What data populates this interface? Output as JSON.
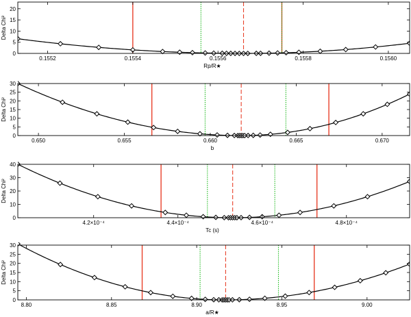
{
  "chart_data": [
    {
      "type": "line",
      "xlabel": "Rp/R★",
      "ylabel": "Delta Chi²",
      "xlim": [
        0.15513,
        0.15605
      ],
      "ylim": [
        0,
        23
      ],
      "xticks": [
        0.1552,
        0.1554,
        0.1556,
        0.1558,
        0.156
      ],
      "xtick_labels": [
        "0.1552",
        "0.1554",
        "0.1556",
        "0.1558",
        "0.1560"
      ],
      "yticks": [
        0,
        5,
        10,
        15,
        20
      ],
      "curve": {
        "center": 0.15566,
        "a_left": 23350000,
        "a_right": 29900000
      },
      "points_x": [
        0.15513,
        0.15523,
        0.15532,
        0.1554,
        0.15547,
        0.15551,
        0.15554,
        0.15557,
        0.15559,
        0.15561,
        0.15562,
        0.15563,
        0.15564,
        0.15565,
        0.15566,
        0.15567,
        0.15569,
        0.1557,
        0.15572,
        0.15574,
        0.15576,
        0.15579,
        0.15584,
        0.1559,
        0.15597,
        0.15605
      ],
      "vlines": [
        {
          "x": 0.1554,
          "color": "#e8402a",
          "style": "solid"
        },
        {
          "x": 0.15575,
          "color": "#e8402a",
          "style": "solid"
        },
        {
          "x": 0.15556,
          "color": "#22bb22",
          "style": "dotted"
        },
        {
          "x": 0.15575,
          "color": "#22bb22",
          "style": "dotted"
        },
        {
          "x": 0.15566,
          "color": "#e8402a",
          "style": "dashed"
        }
      ]
    },
    {
      "type": "line",
      "xlabel": "b",
      "ylabel": "Delta Chi²",
      "xlim": [
        0.6488,
        0.6716
      ],
      "ylim": [
        0,
        30
      ],
      "xticks": [
        0.65,
        0.655,
        0.66,
        0.665,
        0.67
      ],
      "xtick_labels": [
        "0.650",
        "0.655",
        "0.660",
        "0.665",
        "0.670"
      ],
      "yticks": [
        0,
        5,
        10,
        15,
        20,
        25,
        30
      ],
      "curve": {
        "center": 0.6618,
        "a_left": 177500,
        "a_right": 249000
      },
      "points_x": [
        0.6488,
        0.6514,
        0.6534,
        0.6552,
        0.6567,
        0.6581,
        0.6594,
        0.6604,
        0.661,
        0.6614,
        0.6616,
        0.6617,
        0.6618,
        0.6619,
        0.662,
        0.6622,
        0.6625,
        0.6629,
        0.6635,
        0.6645,
        0.6658,
        0.6673,
        0.6689,
        0.6703,
        0.6716
      ],
      "vlines": [
        {
          "x": 0.6566,
          "color": "#e8402a",
          "style": "solid"
        },
        {
          "x": 0.6669,
          "color": "#e8402a",
          "style": "solid"
        },
        {
          "x": 0.6597,
          "color": "#22bb22",
          "style": "dotted"
        },
        {
          "x": 0.6644,
          "color": "#22bb22",
          "style": "dotted"
        },
        {
          "x": 0.6618,
          "color": "#e8402a",
          "style": "dashed"
        }
      ]
    },
    {
      "type": "line",
      "xlabel": "Tc (s)",
      "ylabel": "Delta Chi²",
      "xlim": [
        4.02,
        4.95
      ],
      "ylim": [
        0,
        40
      ],
      "xticks": [
        4.2,
        4.4,
        4.6,
        4.8
      ],
      "xtick_labels": [
        "4.2×10⁻⁴",
        "4.4×10⁻⁴",
        "4.6×10⁻⁴",
        "4.8×10⁻⁴"
      ],
      "yticks": [
        0,
        10,
        20,
        30,
        40
      ],
      "curve": {
        "center": 4.53,
        "a_left": 154,
        "a_right": 154
      },
      "points_x": [
        4.02,
        4.12,
        4.21,
        4.29,
        4.37,
        4.42,
        4.46,
        4.49,
        4.51,
        4.52,
        4.525,
        4.53,
        4.535,
        4.54,
        4.55,
        4.57,
        4.6,
        4.64,
        4.69,
        4.77,
        4.85,
        4.95
      ],
      "vlines": [
        {
          "x": 4.36,
          "color": "#e8402a",
          "style": "solid"
        },
        {
          "x": 4.73,
          "color": "#e8402a",
          "style": "solid"
        },
        {
          "x": 4.47,
          "color": "#22bb22",
          "style": "dotted"
        },
        {
          "x": 4.63,
          "color": "#22bb22",
          "style": "dotted"
        },
        {
          "x": 4.53,
          "color": "#e8402a",
          "style": "dashed"
        }
      ]
    },
    {
      "type": "line",
      "xlabel": "a/R★",
      "ylabel": "Delta Chi²",
      "xlim": [
        8.795,
        9.025
      ],
      "ylim": [
        0,
        30
      ],
      "xticks": [
        8.8,
        8.85,
        8.9,
        8.95,
        9.0
      ],
      "xtick_labels": [
        "8.80",
        "8.85",
        "8.90",
        "8.95",
        "9.00"
      ],
      "yticks": [
        0,
        5,
        10,
        15,
        20,
        25,
        30
      ],
      "curve": {
        "center": 8.917,
        "a_left": 2060,
        "a_right": 1680
      },
      "points_x": [
        8.795,
        8.82,
        8.84,
        8.858,
        8.873,
        8.886,
        8.897,
        8.905,
        8.91,
        8.913,
        8.915,
        8.916,
        8.917,
        8.918,
        8.919,
        8.921,
        8.925,
        8.931,
        8.94,
        8.952,
        8.966,
        8.981,
        8.996,
        9.011,
        9.025
      ],
      "vlines": [
        {
          "x": 8.868,
          "color": "#e8402a",
          "style": "solid"
        },
        {
          "x": 8.969,
          "color": "#e8402a",
          "style": "solid"
        },
        {
          "x": 8.902,
          "color": "#22bb22",
          "style": "dotted"
        },
        {
          "x": 8.948,
          "color": "#22bb22",
          "style": "dotted"
        },
        {
          "x": 8.917,
          "color": "#e8402a",
          "style": "dashed"
        }
      ]
    }
  ]
}
